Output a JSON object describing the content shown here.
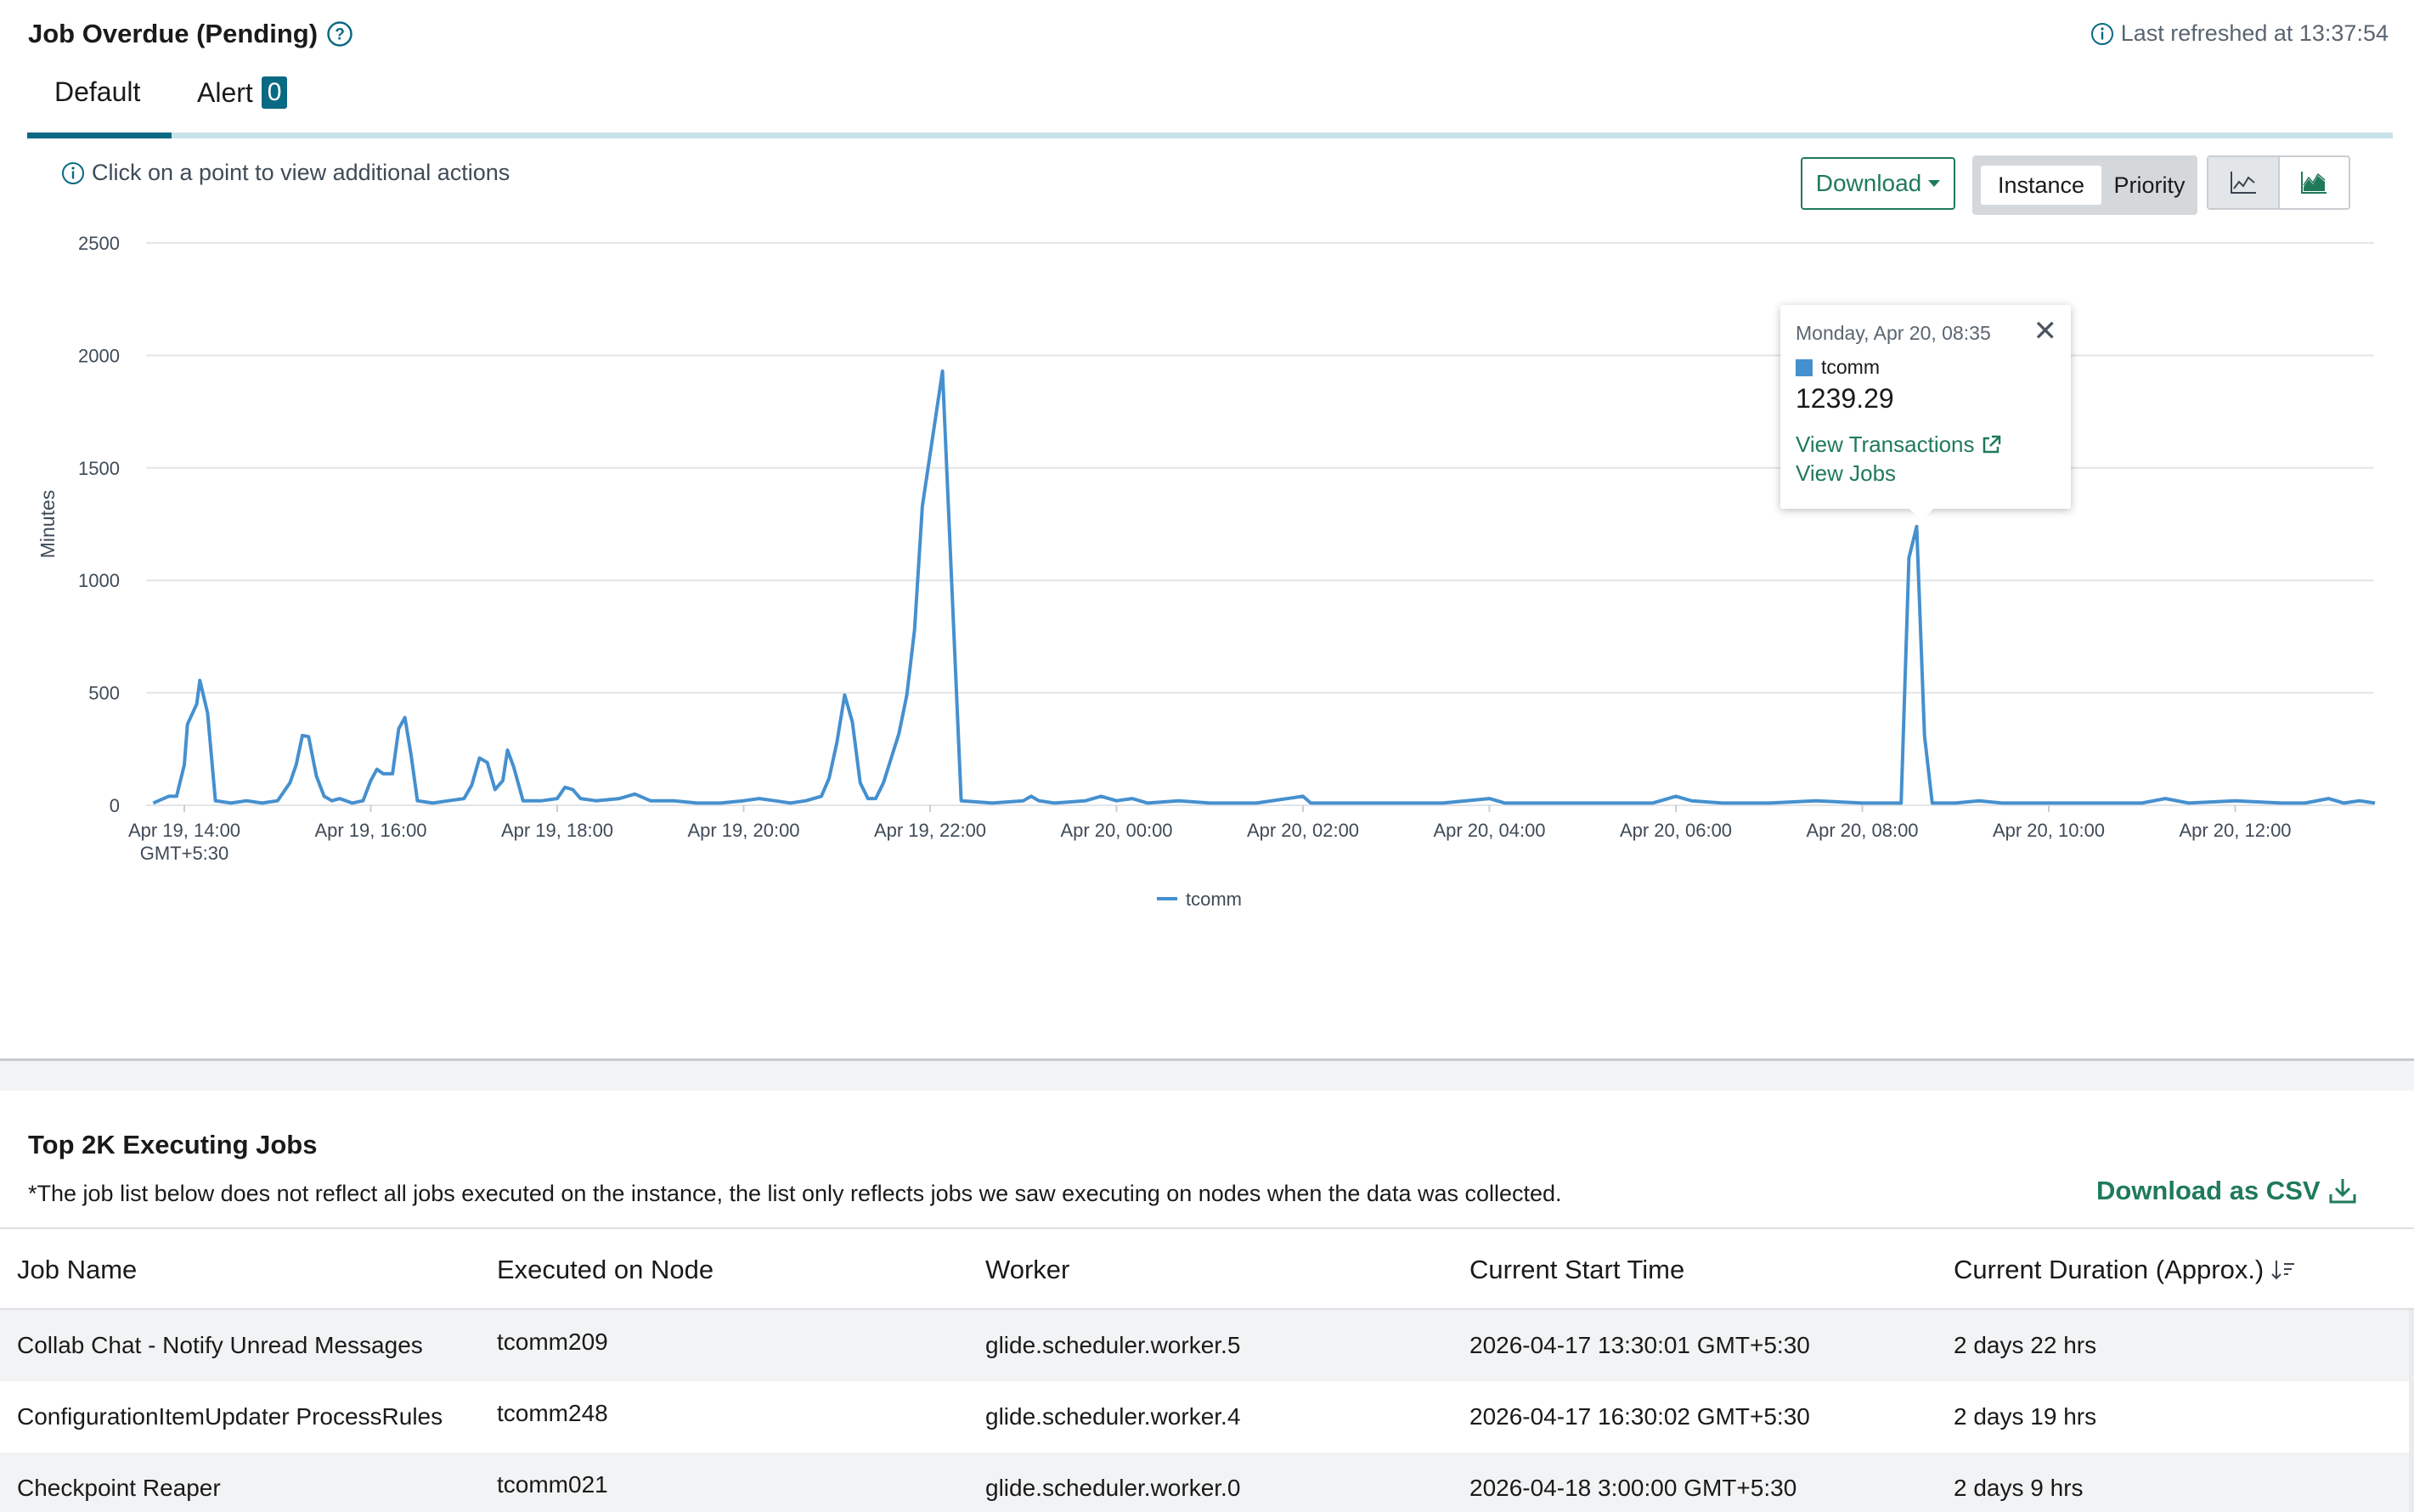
{
  "header": {
    "title": "Job Overdue (Pending)",
    "last_refreshed": "Last refreshed at 13:37:54"
  },
  "tabs": [
    {
      "label": "Default"
    },
    {
      "label": "Alert",
      "badge": "0"
    }
  ],
  "toolbar": {
    "hint": "Click on a point to view additional actions",
    "download_label": "Download",
    "group_by_options": [
      "Instance",
      "Priority"
    ],
    "group_by_selected": "Instance",
    "chart_types": [
      "line-chart-icon",
      "area-chart-icon"
    ]
  },
  "chart_data": {
    "type": "line",
    "ylabel": "Minutes",
    "ylim": [
      0,
      2500
    ],
    "yticks": [
      "0",
      "500",
      "1000",
      "1500",
      "2000",
      "2500"
    ],
    "xticks": [
      "Apr 19, 14:00",
      "Apr 19, 16:00",
      "Apr 19, 18:00",
      "Apr 19, 20:00",
      "Apr 19, 22:00",
      "Apr 20, 00:00",
      "Apr 20, 02:00",
      "Apr 20, 04:00",
      "Apr 20, 06:00",
      "Apr 20, 08:00",
      "Apr 20, 10:00",
      "Apr 20, 12:00"
    ],
    "timezone_label": "GMT+5:30",
    "grid": true,
    "legend_position": "bottom",
    "series": [
      {
        "name": "tcomm",
        "color": "#4590cf",
        "points": [
          [
            "Apr 19 13:40",
            10
          ],
          [
            "Apr 19 13:50",
            40
          ],
          [
            "Apr 19 13:55",
            40
          ],
          [
            "Apr 19 14:00",
            180
          ],
          [
            "Apr 19 14:02",
            360
          ],
          [
            "Apr 19 14:08",
            450
          ],
          [
            "Apr 19 14:10",
            555
          ],
          [
            "Apr 19 14:15",
            410
          ],
          [
            "Apr 19 14:20",
            20
          ],
          [
            "Apr 19 14:30",
            10
          ],
          [
            "Apr 19 14:40",
            20
          ],
          [
            "Apr 19 14:50",
            10
          ],
          [
            "Apr 19 15:00",
            20
          ],
          [
            "Apr 19 15:08",
            100
          ],
          [
            "Apr 19 15:12",
            180
          ],
          [
            "Apr 19 15:16",
            310
          ],
          [
            "Apr 19 15:20",
            305
          ],
          [
            "Apr 19 15:25",
            130
          ],
          [
            "Apr 19 15:30",
            40
          ],
          [
            "Apr 19 15:35",
            20
          ],
          [
            "Apr 19 15:40",
            30
          ],
          [
            "Apr 19 15:48",
            10
          ],
          [
            "Apr 19 15:55",
            20
          ],
          [
            "Apr 19 16:00",
            110
          ],
          [
            "Apr 19 16:04",
            160
          ],
          [
            "Apr 19 16:08",
            140
          ],
          [
            "Apr 19 16:14",
            140
          ],
          [
            "Apr 19 16:18",
            340
          ],
          [
            "Apr 19 16:22",
            390
          ],
          [
            "Apr 19 16:26",
            220
          ],
          [
            "Apr 19 16:30",
            20
          ],
          [
            "Apr 19 16:40",
            10
          ],
          [
            "Apr 19 16:50",
            20
          ],
          [
            "Apr 19 17:00",
            30
          ],
          [
            "Apr 19 17:05",
            90
          ],
          [
            "Apr 19 17:10",
            210
          ],
          [
            "Apr 19 17:15",
            190
          ],
          [
            "Apr 19 17:20",
            70
          ],
          [
            "Apr 19 17:25",
            110
          ],
          [
            "Apr 19 17:28",
            245
          ],
          [
            "Apr 19 17:32",
            170
          ],
          [
            "Apr 19 17:38",
            20
          ],
          [
            "Apr 19 17:50",
            20
          ],
          [
            "Apr 19 18:00",
            30
          ],
          [
            "Apr 19 18:05",
            80
          ],
          [
            "Apr 19 18:10",
            70
          ],
          [
            "Apr 19 18:15",
            30
          ],
          [
            "Apr 19 18:25",
            20
          ],
          [
            "Apr 19 18:40",
            30
          ],
          [
            "Apr 19 18:50",
            50
          ],
          [
            "Apr 19 19:00",
            20
          ],
          [
            "Apr 19 19:15",
            20
          ],
          [
            "Apr 19 19:30",
            10
          ],
          [
            "Apr 19 19:45",
            10
          ],
          [
            "Apr 19 20:00",
            20
          ],
          [
            "Apr 19 20:10",
            30
          ],
          [
            "Apr 19 20:20",
            20
          ],
          [
            "Apr 19 20:30",
            10
          ],
          [
            "Apr 19 20:40",
            20
          ],
          [
            "Apr 19 20:50",
            40
          ],
          [
            "Apr 19 20:55",
            120
          ],
          [
            "Apr 19 21:00",
            280
          ],
          [
            "Apr 19 21:05",
            490
          ],
          [
            "Apr 19 21:10",
            370
          ],
          [
            "Apr 19 21:15",
            100
          ],
          [
            "Apr 19 21:20",
            30
          ],
          [
            "Apr 19 21:25",
            30
          ],
          [
            "Apr 19 21:30",
            100
          ],
          [
            "Apr 19 21:40",
            320
          ],
          [
            "Apr 19 21:45",
            490
          ],
          [
            "Apr 19 21:50",
            780
          ],
          [
            "Apr 19 21:55",
            1330
          ],
          [
            "Apr 19 22:08",
            1930
          ],
          [
            "Apr 19 22:20",
            20
          ],
          [
            "Apr 19 22:40",
            10
          ],
          [
            "Apr 19 23:00",
            20
          ],
          [
            "Apr 19 23:05",
            40
          ],
          [
            "Apr 19 23:10",
            20
          ],
          [
            "Apr 19 23:20",
            10
          ],
          [
            "Apr 19 23:40",
            20
          ],
          [
            "Apr 19 23:50",
            40
          ],
          [
            "Apr 20 00:00",
            20
          ],
          [
            "Apr 20 00:10",
            30
          ],
          [
            "Apr 20 00:20",
            10
          ],
          [
            "Apr 20 00:40",
            20
          ],
          [
            "Apr 20 01:00",
            10
          ],
          [
            "Apr 20 01:30",
            10
          ],
          [
            "Apr 20 02:00",
            40
          ],
          [
            "Apr 20 02:05",
            10
          ],
          [
            "Apr 20 02:30",
            10
          ],
          [
            "Apr 20 03:00",
            10
          ],
          [
            "Apr 20 03:30",
            10
          ],
          [
            "Apr 20 04:00",
            30
          ],
          [
            "Apr 20 04:10",
            10
          ],
          [
            "Apr 20 04:30",
            10
          ],
          [
            "Apr 20 05:00",
            10
          ],
          [
            "Apr 20 05:30",
            10
          ],
          [
            "Apr 20 05:45",
            10
          ],
          [
            "Apr 20 06:00",
            40
          ],
          [
            "Apr 20 06:10",
            20
          ],
          [
            "Apr 20 06:30",
            10
          ],
          [
            "Apr 20 07:00",
            10
          ],
          [
            "Apr 20 07:30",
            20
          ],
          [
            "Apr 20 08:00",
            10
          ],
          [
            "Apr 20 08:25",
            10
          ],
          [
            "Apr 20 08:30",
            1100
          ],
          [
            "Apr 20 08:35",
            1239.29
          ],
          [
            "Apr 20 08:40",
            310
          ],
          [
            "Apr 20 08:45",
            10
          ],
          [
            "Apr 20 09:00",
            10
          ],
          [
            "Apr 20 09:15",
            20
          ],
          [
            "Apr 20 09:30",
            10
          ],
          [
            "Apr 20 10:00",
            10
          ],
          [
            "Apr 20 10:30",
            10
          ],
          [
            "Apr 20 11:00",
            10
          ],
          [
            "Apr 20 11:15",
            30
          ],
          [
            "Apr 20 11:30",
            10
          ],
          [
            "Apr 20 12:00",
            20
          ],
          [
            "Apr 20 12:30",
            10
          ],
          [
            "Apr 20 12:45",
            10
          ],
          [
            "Apr 20 13:00",
            30
          ],
          [
            "Apr 20 13:10",
            10
          ],
          [
            "Apr 20 13:20",
            20
          ],
          [
            "Apr 20 13:30",
            10
          ]
        ]
      }
    ]
  },
  "tooltip": {
    "date": "Monday, Apr 20, 08:35",
    "series": "tcomm",
    "value": "1239.29",
    "link_transactions": "View Transactions",
    "link_jobs": "View Jobs"
  },
  "jobs": {
    "title": "Top 2K Executing Jobs",
    "note": "*The job list below does not reflect all jobs executed on the instance, the list only reflects jobs we saw executing on nodes when the data was collected.",
    "download_csv": "Download as CSV",
    "columns": [
      "Job Name",
      "Executed on Node",
      "Worker",
      "Current Start Time",
      "Current Duration (Approx.)"
    ],
    "rows": [
      [
        "Collab Chat - Notify Unread Messages",
        "tcomm209",
        "glide.scheduler.worker.5",
        "2026-04-17 13:30:01 GMT+5:30",
        "2 days 22 hrs"
      ],
      [
        "ConfigurationItemUpdater ProcessRules",
        "tcomm248",
        "glide.scheduler.worker.4",
        "2026-04-17 16:30:02 GMT+5:30",
        "2 days 19 hrs"
      ],
      [
        "Checkpoint Reaper",
        "tcomm021",
        "glide.scheduler.worker.0",
        "2026-04-18 3:00:00 GMT+5:30",
        "2 days 9 hrs"
      ]
    ]
  }
}
